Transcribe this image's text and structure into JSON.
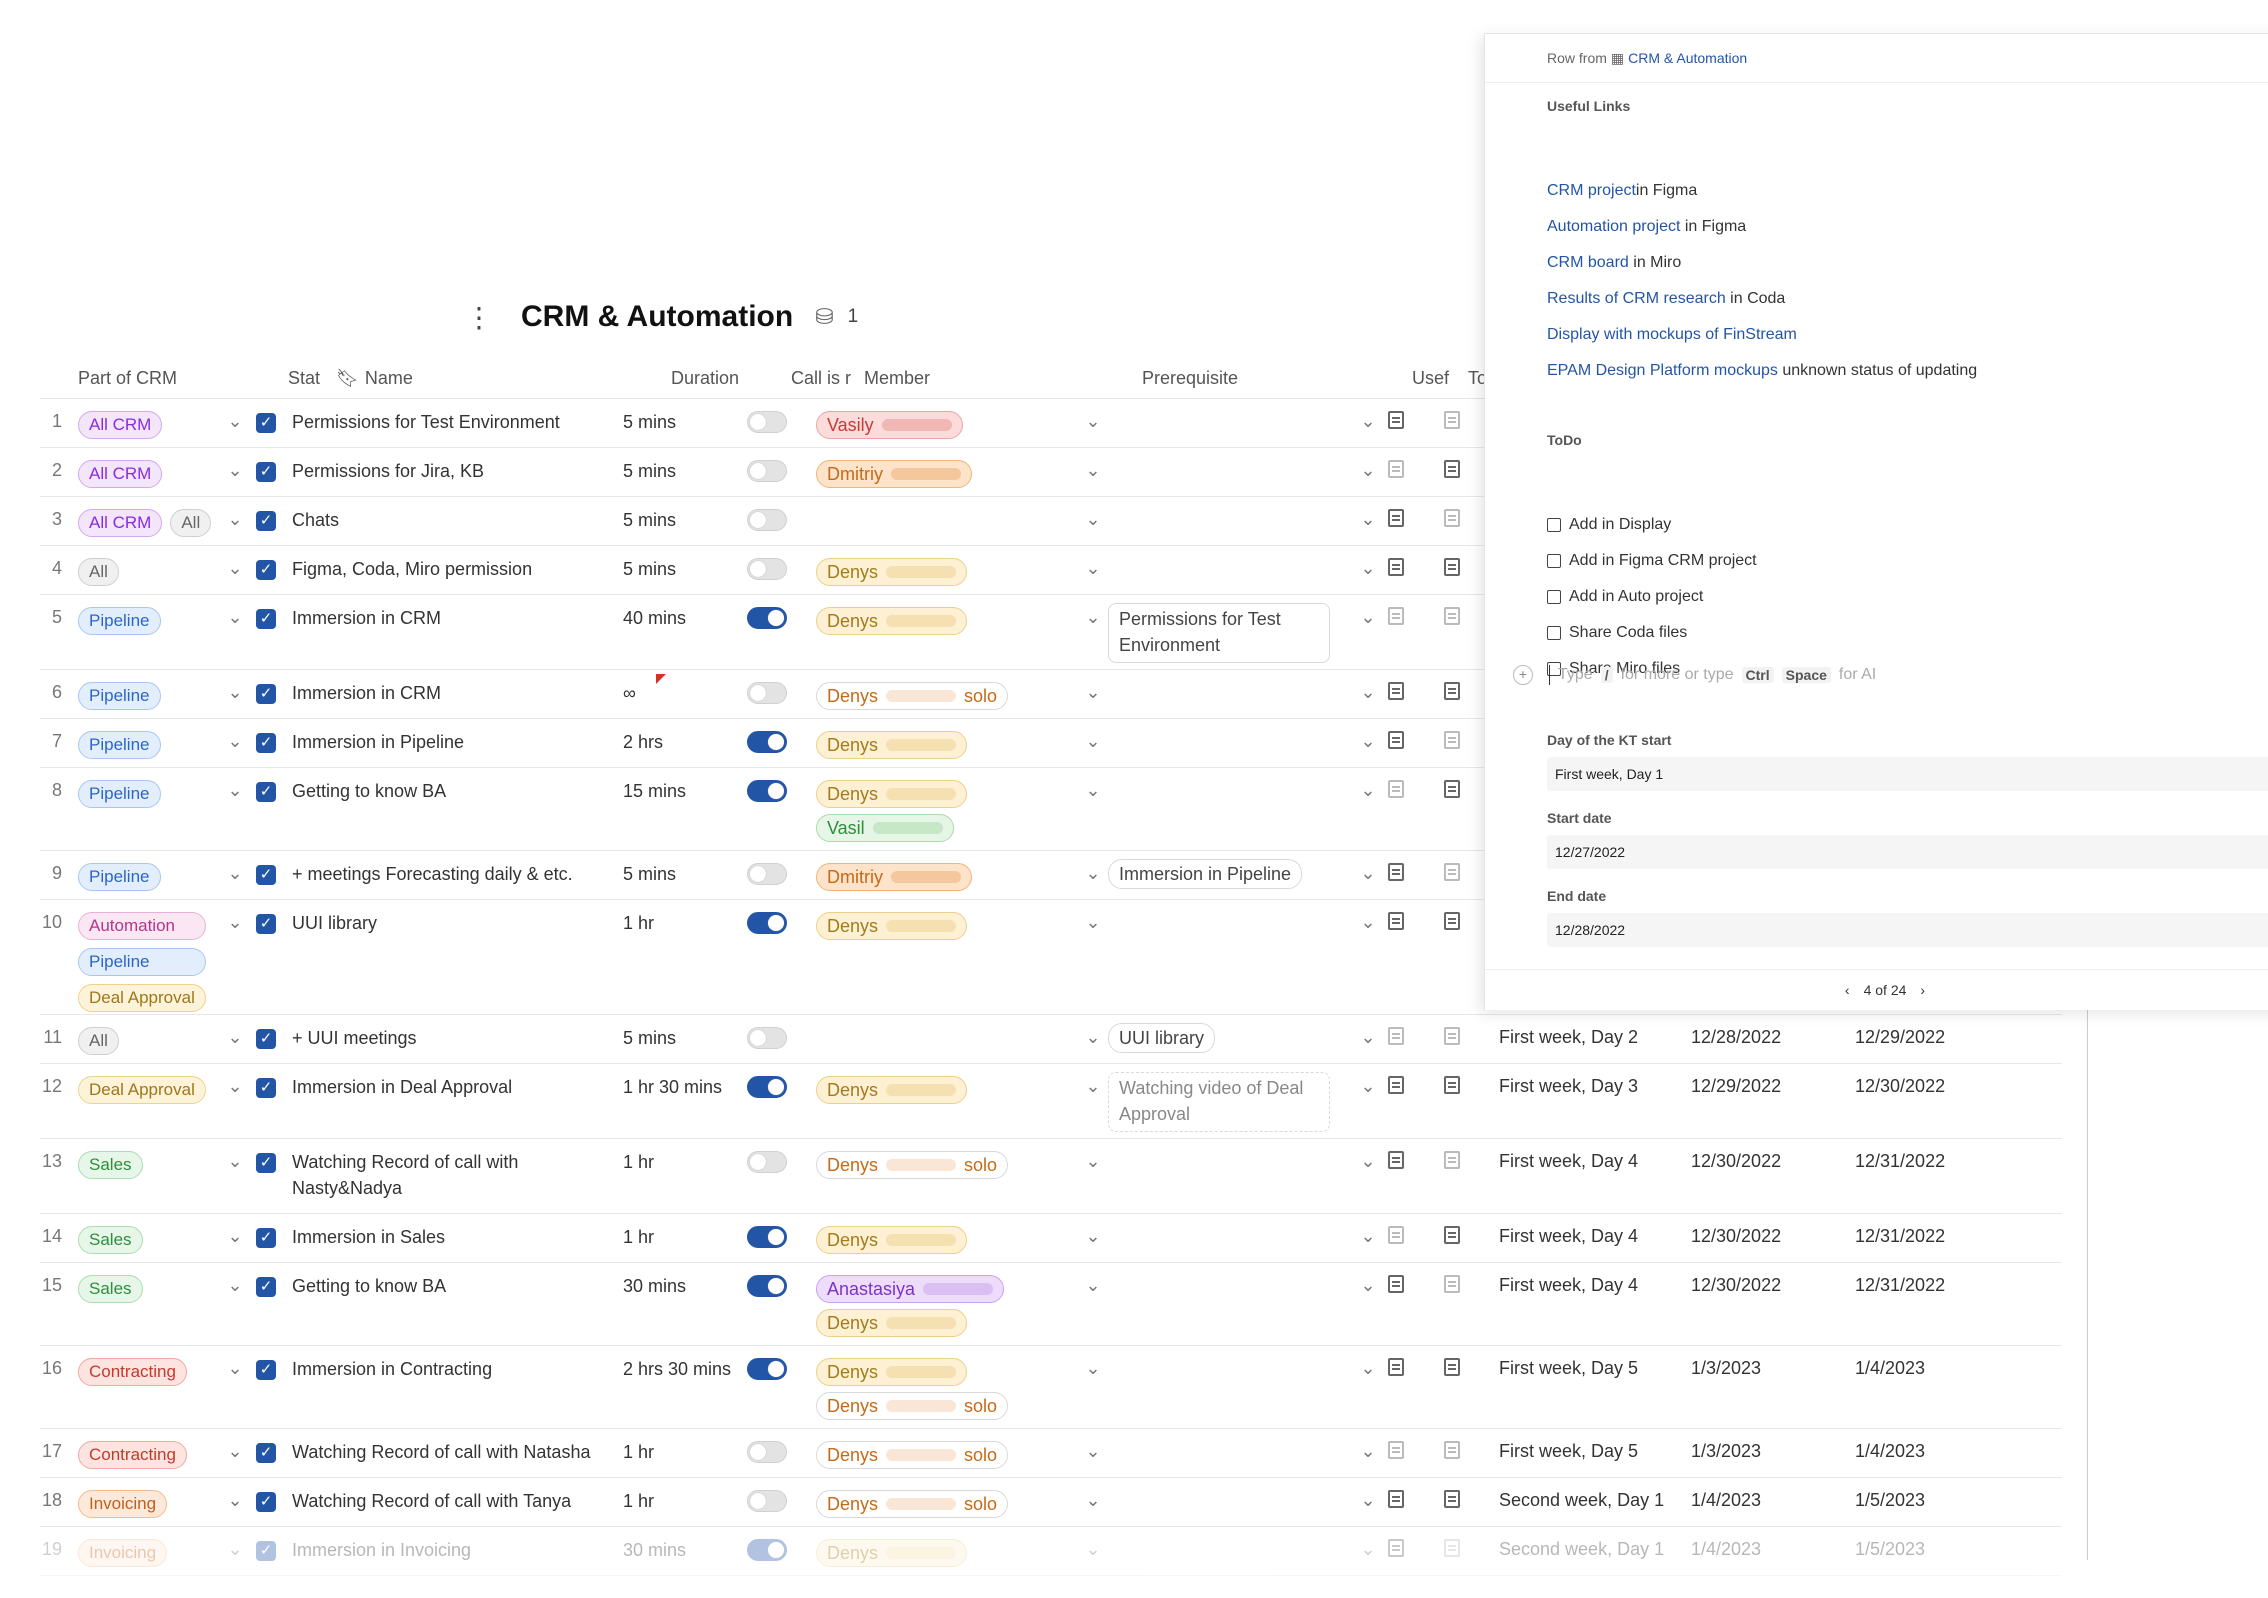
{
  "doc": {
    "title": "CRM & Automation",
    "view_count": "1"
  },
  "columns": [
    "Part of CRM",
    "Stat",
    "Name",
    "Duration",
    "Call is r",
    "Member",
    "Prerequisite",
    "Usef",
    "To"
  ],
  "rows": [
    {
      "num": "1",
      "tags": [
        [
          "All CRM",
          "allcrm"
        ]
      ],
      "name": "Permissions for Test Environment",
      "duration": "5 mins",
      "call": false,
      "members": [
        [
          "Vasily",
          "red",
          ""
        ]
      ],
      "pre": "",
      "h": 48
    },
    {
      "num": "2",
      "tags": [
        [
          "All CRM",
          "allcrm"
        ]
      ],
      "name": "Permissions for Jira, KB",
      "duration": "5 mins",
      "call": false,
      "members": [
        [
          "Dmitriy",
          "orange",
          ""
        ]
      ],
      "pre": "",
      "h": 48
    },
    {
      "num": "3",
      "tags": [
        [
          "All CRM",
          "allcrm"
        ],
        [
          "All",
          "all"
        ]
      ],
      "name": "Chats",
      "duration": "5 mins",
      "call": false,
      "members": [],
      "pre": "",
      "h": 48
    },
    {
      "num": "4",
      "tags": [
        [
          "All",
          "all"
        ]
      ],
      "name": "Figma, Coda, Miro permission",
      "duration": "5 mins",
      "call": false,
      "members": [
        [
          "Denys",
          "yellow",
          ""
        ]
      ],
      "pre": "",
      "h": 48
    },
    {
      "num": "5",
      "tags": [
        [
          "Pipeline",
          "pipeline"
        ]
      ],
      "name": "Immersion in CRM",
      "duration": "40 mins",
      "call": true,
      "members": [
        [
          "Denys",
          "yellow",
          ""
        ]
      ],
      "pre": "Permissions for Test Environment",
      "preStyle": "box",
      "h": 74
    },
    {
      "num": "6",
      "tags": [
        [
          "Pipeline",
          "pipeline"
        ]
      ],
      "name": "Immersion in CRM",
      "duration": "∞",
      "call": false,
      "members": [
        [
          "Denys",
          "outline",
          "solo"
        ]
      ],
      "pre": "",
      "h": 48,
      "flag": true
    },
    {
      "num": "7",
      "tags": [
        [
          "Pipeline",
          "pipeline"
        ]
      ],
      "name": "Immersion in Pipeline",
      "duration": "2 hrs",
      "call": true,
      "members": [
        [
          "Denys",
          "yellow",
          ""
        ]
      ],
      "pre": "",
      "h": 48
    },
    {
      "num": "8",
      "tags": [
        [
          "Pipeline",
          "pipeline"
        ]
      ],
      "name": "Getting to know BA",
      "duration": "15 mins",
      "call": true,
      "members": [
        [
          "Denys",
          "yellow",
          ""
        ],
        [
          "Vasil",
          "green",
          ""
        ]
      ],
      "pre": "",
      "h": 82
    },
    {
      "num": "9",
      "tags": [
        [
          "Pipeline",
          "pipeline"
        ]
      ],
      "name": "+ meetings Forecasting daily & etc.",
      "duration": "5 mins",
      "call": false,
      "members": [
        [
          "Dmitriy",
          "orange",
          ""
        ]
      ],
      "pre": "Immersion in Pipeline",
      "preStyle": "pill",
      "h": 48
    },
    {
      "num": "10",
      "tags": [
        [
          "Automation",
          "automation"
        ],
        [
          "Pipeline",
          "pipeline"
        ],
        [
          "Deal Approval",
          "deal"
        ]
      ],
      "name": "UUI library",
      "duration": "1 hr",
      "call": true,
      "members": [
        [
          "Denys",
          "yellow",
          ""
        ]
      ],
      "pre": "",
      "h": 114,
      "stack": true
    },
    {
      "num": "11",
      "tags": [
        [
          "All",
          "all"
        ]
      ],
      "name": "+ UUI meetings",
      "duration": "5 mins",
      "call": false,
      "members": [],
      "pre": "UUI library",
      "preStyle": "pill",
      "h": 48,
      "day": "First week, Day 2",
      "start": "12/28/2022",
      "end": "12/29/2022"
    },
    {
      "num": "12",
      "tags": [
        [
          "Deal Approval",
          "deal"
        ]
      ],
      "name": "Immersion in Deal Approval",
      "duration": "1 hr 30 mins",
      "call": true,
      "members": [
        [
          "Denys",
          "yellow",
          ""
        ]
      ],
      "pre": "Watching video of Deal Approval",
      "preStyle": "dash",
      "h": 74,
      "day": "First week, Day 3",
      "start": "12/29/2022",
      "end": "12/30/2022"
    },
    {
      "num": "13",
      "tags": [
        [
          "Sales",
          "sales"
        ]
      ],
      "name": "Watching Record of call with Nasty&Nadya",
      "duration": "1 hr",
      "call": false,
      "members": [
        [
          "Denys",
          "outline",
          "solo"
        ]
      ],
      "pre": "",
      "h": 74,
      "day": "First week, Day 4",
      "start": "12/30/2022",
      "end": "12/31/2022"
    },
    {
      "num": "14",
      "tags": [
        [
          "Sales",
          "sales"
        ]
      ],
      "name": "Immersion in Sales",
      "duration": "1 hr",
      "call": true,
      "members": [
        [
          "Denys",
          "yellow",
          ""
        ]
      ],
      "pre": "",
      "h": 48,
      "day": "First week, Day 4",
      "start": "12/30/2022",
      "end": "12/31/2022"
    },
    {
      "num": "15",
      "tags": [
        [
          "Sales",
          "sales"
        ]
      ],
      "name": "Getting to know BA",
      "duration": "30 mins",
      "call": true,
      "members": [
        [
          "Anastasiya",
          "purple",
          ""
        ],
        [
          "Denys",
          "yellow",
          ""
        ]
      ],
      "pre": "",
      "h": 82,
      "day": "First week, Day 4",
      "start": "12/30/2022",
      "end": "12/31/2022"
    },
    {
      "num": "16",
      "tags": [
        [
          "Contracting",
          "contract"
        ]
      ],
      "name": "Immersion in Contracting",
      "duration": "2 hrs 30 mins",
      "call": true,
      "members": [
        [
          "Denys",
          "yellow",
          ""
        ],
        [
          "Denys",
          "outline",
          "solo"
        ]
      ],
      "pre": "",
      "h": 82,
      "day": "First week, Day 5",
      "start": "1/3/2023",
      "end": "1/4/2023"
    },
    {
      "num": "17",
      "tags": [
        [
          "Contracting",
          "contract"
        ]
      ],
      "name": "Watching Record of call with Natasha",
      "duration": "1 hr",
      "call": false,
      "members": [
        [
          "Denys",
          "outline",
          "solo"
        ]
      ],
      "pre": "",
      "h": 48,
      "day": "First week, Day 5",
      "start": "1/3/2023",
      "end": "1/4/2023"
    },
    {
      "num": "18",
      "tags": [
        [
          "Invoicing",
          "invoice"
        ]
      ],
      "name": "Watching Record of call with Tanya",
      "duration": "1 hr",
      "call": false,
      "members": [
        [
          "Denys",
          "outline",
          "solo"
        ]
      ],
      "pre": "",
      "h": 48,
      "day": "Second week, Day 1",
      "start": "1/4/2023",
      "end": "1/5/2023"
    },
    {
      "num": "19",
      "tags": [
        [
          "Invoicing",
          "invoice"
        ]
      ],
      "name": "Immersion in Invoicing",
      "duration": "30 mins",
      "call": true,
      "members": [
        [
          "Denys",
          "yellow",
          ""
        ]
      ],
      "pre": "",
      "h": 48,
      "day": "Second week, Day 1",
      "start": "1/4/2023",
      "end": "1/5/2023",
      "fade": true
    }
  ],
  "panel": {
    "row_from": "Row from",
    "source": "CRM & Automation",
    "useful_links_label": "Useful Links",
    "links": [
      {
        "a": "CRM project",
        "rest": "in Figma"
      },
      {
        "a": "Automation project",
        "rest": " in Figma"
      },
      {
        "a": "CRM board",
        "rest": " in Miro"
      },
      {
        "a": "Results of CRM research",
        "rest": " in Coda"
      },
      {
        "a": "Display with mockups of FinStream",
        "rest": ""
      },
      {
        "a": "EPAM Design Platform mockups",
        "rest": " unknown status of updating"
      }
    ],
    "todo_label": "ToDo",
    "todos": [
      "Add in Display",
      "Add in Figma CRM project",
      "Add in Auto project",
      "Share Coda files",
      "Share Miro files"
    ],
    "type_prompt": {
      "type": "Type",
      "slash": "/",
      "more": "for more or type",
      "ctrl": "Ctrl",
      "space": "Space",
      "ai": "for AI"
    },
    "day_label": "Day of the KT start",
    "day_value": "First week, Day 1",
    "start_label": "Start date",
    "start_value": "12/27/2022",
    "end_label": "End date",
    "end_value": "12/28/2022",
    "pager": "4 of 24"
  },
  "colors": {
    "accent": "#2355a7"
  }
}
